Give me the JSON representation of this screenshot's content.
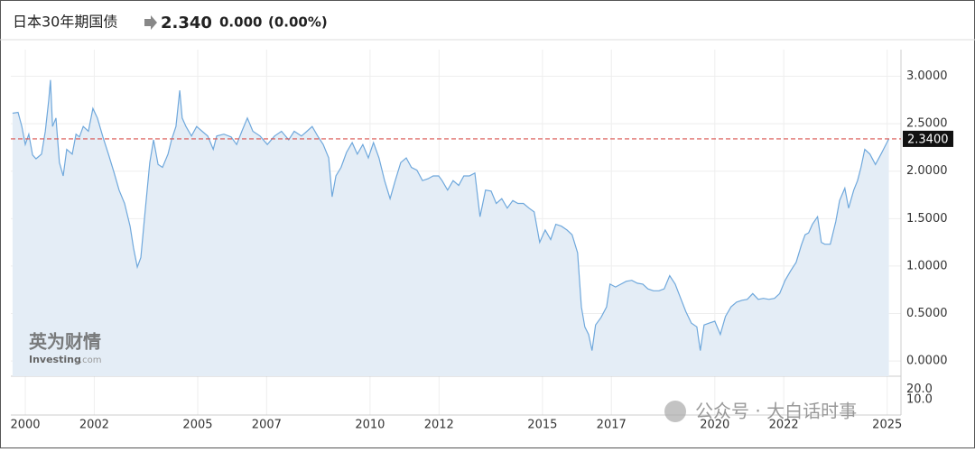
{
  "chart_data": {
    "type": "area",
    "title": "日本30年期国债",
    "header": {
      "price": "2.340",
      "change": "0.000",
      "change_pct": "(0.00%)"
    },
    "watermarks": {
      "logo": "英为财情",
      "site": "Investing",
      "site_suffix": ".com",
      "wechat": "公众号 · 大白话时事"
    },
    "line_color": "#6fa8dc",
    "fill_color": "#e4edf6",
    "grid": true,
    "xlim": [
      1999.58,
      2025.4
    ],
    "xticks": [
      2000,
      2002,
      2005,
      2007,
      2010,
      2012,
      2015,
      2017,
      2020,
      2022,
      2025
    ],
    "ylim": [
      -0.16,
      3.28
    ],
    "yticks": [
      {
        "value": 0,
        "label": "0.0000"
      },
      {
        "value": 0.5,
        "label": "0.5000"
      },
      {
        "value": 1,
        "label": "1.0000"
      },
      {
        "value": 1.5,
        "label": "1.5000"
      },
      {
        "value": 2,
        "label": "2.0000"
      },
      {
        "value": 2.5,
        "label": "2.5000"
      },
      {
        "value": 3,
        "label": "3.0000"
      }
    ],
    "last_value": 2.34,
    "last_value_label": "2.3400",
    "last_line_color": "#d9534f",
    "volume_ylim": [
      0,
      33
    ],
    "volume_yticks": [
      {
        "value": 10,
        "label": "10.0"
      },
      {
        "value": 20,
        "label": "20.0"
      }
    ],
    "x": [
      1999.63,
      1999.79,
      1999.9,
      2000,
      2000.1,
      2000.21,
      2000.31,
      2000.47,
      2000.58,
      2000.68,
      2000.73,
      2000.79,
      2000.89,
      2000.99,
      2001.1,
      2001.2,
      2001.36,
      2001.47,
      2001.57,
      2001.68,
      2001.83,
      2001.96,
      2002.09,
      2002.25,
      2002.41,
      2002.57,
      2002.72,
      2002.88,
      2003.04,
      2003.14,
      2003.25,
      2003.35,
      2003.46,
      2003.61,
      2003.72,
      2003.85,
      2003.98,
      2004.14,
      2004.24,
      2004.37,
      2004.48,
      2004.55,
      2004.66,
      2004.82,
      2004.97,
      2005.13,
      2005.29,
      2005.45,
      2005.55,
      2005.76,
      2005.97,
      2006.13,
      2006.28,
      2006.44,
      2006.6,
      2006.81,
      2007.02,
      2007.23,
      2007.43,
      2007.64,
      2007.8,
      2008.01,
      2008.17,
      2008.32,
      2008.48,
      2008.64,
      2008.8,
      2008.9,
      2009.01,
      2009.16,
      2009.32,
      2009.48,
      2009.63,
      2009.79,
      2009.95,
      2010.1,
      2010.26,
      2010.42,
      2010.58,
      2010.73,
      2010.89,
      2011.05,
      2011.2,
      2011.36,
      2011.52,
      2011.68,
      2011.83,
      2011.99,
      2012.09,
      2012.25,
      2012.41,
      2012.57,
      2012.72,
      2012.88,
      2013.04,
      2013.19,
      2013.35,
      2013.51,
      2013.66,
      2013.82,
      2013.98,
      2014.14,
      2014.29,
      2014.45,
      2014.61,
      2014.76,
      2014.92,
      2015.08,
      2015.24,
      2015.39,
      2015.55,
      2015.71,
      2015.86,
      2016.02,
      2016.13,
      2016.23,
      2016.34,
      2016.44,
      2016.54,
      2016.7,
      2016.86,
      2016.96,
      2017.12,
      2017.28,
      2017.43,
      2017.59,
      2017.75,
      2017.91,
      2018.06,
      2018.22,
      2018.38,
      2018.53,
      2018.69,
      2018.85,
      2019.01,
      2019.16,
      2019.32,
      2019.48,
      2019.58,
      2019.69,
      2019.84,
      2020,
      2020.16,
      2020.31,
      2020.47,
      2020.63,
      2020.79,
      2020.94,
      2021.1,
      2021.26,
      2021.41,
      2021.57,
      2021.73,
      2021.88,
      2022.04,
      2022.2,
      2022.36,
      2022.51,
      2022.62,
      2022.72,
      2022.83,
      2022.98,
      2023.09,
      2023.19,
      2023.35,
      2023.51,
      2023.62,
      2023.77,
      2023.88,
      2024.03,
      2024.14,
      2024.24,
      2024.35,
      2024.5,
      2024.66,
      2024.82,
      2024.92,
      2025.05
    ],
    "values": [
      2.61,
      2.62,
      2.47,
      2.28,
      2.39,
      2.17,
      2.13,
      2.18,
      2.42,
      2.75,
      2.96,
      2.47,
      2.56,
      2.09,
      1.95,
      2.23,
      2.18,
      2.39,
      2.36,
      2.47,
      2.42,
      2.66,
      2.56,
      2.36,
      2.18,
      1.99,
      1.8,
      1.66,
      1.42,
      1.19,
      0.99,
      1.09,
      1.52,
      2.09,
      2.33,
      2.07,
      2.04,
      2.18,
      2.33,
      2.47,
      2.85,
      2.56,
      2.47,
      2.37,
      2.47,
      2.42,
      2.37,
      2.23,
      2.37,
      2.39,
      2.36,
      2.28,
      2.42,
      2.56,
      2.42,
      2.37,
      2.28,
      2.37,
      2.42,
      2.33,
      2.42,
      2.37,
      2.42,
      2.47,
      2.37,
      2.28,
      2.14,
      1.73,
      1.95,
      2.04,
      2.2,
      2.3,
      2.18,
      2.28,
      2.14,
      2.3,
      2.14,
      1.9,
      1.71,
      1.9,
      2.09,
      2.14,
      2.04,
      2.01,
      1.9,
      1.92,
      1.95,
      1.95,
      1.9,
      1.8,
      1.9,
      1.85,
      1.95,
      1.95,
      1.98,
      1.52,
      1.8,
      1.79,
      1.66,
      1.71,
      1.61,
      1.69,
      1.66,
      1.66,
      1.61,
      1.57,
      1.25,
      1.38,
      1.28,
      1.44,
      1.42,
      1.38,
      1.33,
      1.14,
      0.57,
      0.36,
      0.28,
      0.11,
      0.38,
      0.46,
      0.57,
      0.81,
      0.78,
      0.81,
      0.84,
      0.85,
      0.82,
      0.81,
      0.76,
      0.74,
      0.74,
      0.76,
      0.9,
      0.81,
      0.66,
      0.52,
      0.4,
      0.36,
      0.11,
      0.38,
      0.4,
      0.42,
      0.28,
      0.47,
      0.57,
      0.62,
      0.64,
      0.65,
      0.71,
      0.65,
      0.66,
      0.65,
      0.66,
      0.71,
      0.85,
      0.95,
      1.04,
      1.22,
      1.33,
      1.35,
      1.44,
      1.52,
      1.25,
      1.23,
      1.23,
      1.47,
      1.69,
      1.82,
      1.61,
      1.8,
      1.9,
      2.04,
      2.23,
      2.18,
      2.07,
      2.18,
      2.25,
      2.34
    ]
  }
}
